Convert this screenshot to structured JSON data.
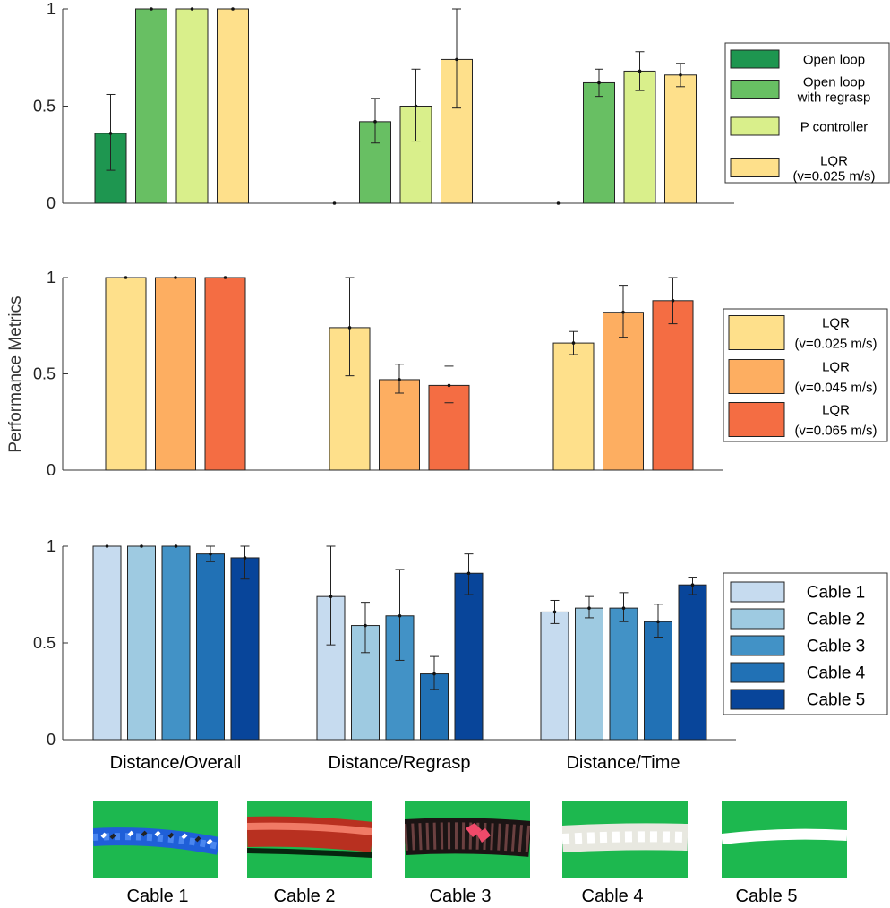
{
  "figure": {
    "y_axis_label": "Performance Metrics",
    "category_labels": [
      "Distance/Overall",
      "Distance/Regrasp",
      "Distance/Time"
    ]
  },
  "colors": {
    "open_loop": "#1e9650",
    "open_loop_regrasp": "#68bf63",
    "p_controller": "#d9ef8b",
    "lqr_025": "#fee08b",
    "lqr_045": "#fdae61",
    "lqr_065": "#f46d43",
    "cable1": "#c6dbef",
    "cable2": "#9ecae1",
    "cable3": "#4292c6",
    "cable4": "#2171b5",
    "cable5": "#08459a",
    "photo_background": "#1db84f"
  },
  "chart_data": [
    {
      "type": "bar",
      "categories": [
        "Distance/Overall",
        "Distance/Regrasp",
        "Distance/Time"
      ],
      "ylim": [
        0,
        1
      ],
      "yticks": [
        "0",
        "0.5",
        "1"
      ],
      "series": [
        {
          "name": "Open loop",
          "legend_lines": [
            "Open loop"
          ],
          "color_key": "open_loop",
          "values": [
            0.36,
            0,
            0
          ],
          "err_low": [
            0.17,
            0,
            0
          ],
          "err_high": [
            0.56,
            0,
            0
          ]
        },
        {
          "name": "Open loop with regrasp",
          "legend_lines": [
            "Open loop",
            "with regrasp"
          ],
          "color_key": "open_loop_regrasp",
          "values": [
            1,
            0.42,
            0.62
          ],
          "err_low": [
            1,
            0.31,
            0.55
          ],
          "err_high": [
            1,
            0.54,
            0.69
          ]
        },
        {
          "name": "P controller",
          "legend_lines": [
            "P controller"
          ],
          "color_key": "p_controller",
          "values": [
            1,
            0.5,
            0.68
          ],
          "err_low": [
            1,
            0.32,
            0.58
          ],
          "err_high": [
            1,
            0.69,
            0.78
          ]
        },
        {
          "name": "LQR (v=0.025 m/s)",
          "legend_lines": [
            "LQR",
            "(v=0.025 m/s)"
          ],
          "color_key": "lqr_025",
          "values": [
            1,
            0.74,
            0.66
          ],
          "err_low": [
            1,
            0.49,
            0.6
          ],
          "err_high": [
            1,
            1.0,
            0.72
          ]
        }
      ]
    },
    {
      "type": "bar",
      "categories": [
        "Distance/Overall",
        "Distance/Regrasp",
        "Distance/Time"
      ],
      "ylim": [
        0,
        1
      ],
      "yticks": [
        "0",
        "0.5",
        "1"
      ],
      "series": [
        {
          "name": "LQR (v=0.025 m/s)",
          "legend_lines": [
            "LQR",
            "(v=0.025 m/s)"
          ],
          "color_key": "lqr_025",
          "values": [
            1,
            0.74,
            0.66
          ],
          "err_low": [
            1,
            0.49,
            0.6
          ],
          "err_high": [
            1,
            1.0,
            0.72
          ]
        },
        {
          "name": "LQR (v=0.045 m/s)",
          "legend_lines": [
            "LQR",
            "(v=0.045 m/s)"
          ],
          "color_key": "lqr_045",
          "values": [
            1,
            0.47,
            0.82
          ],
          "err_low": [
            1,
            0.4,
            0.69
          ],
          "err_high": [
            1,
            0.55,
            0.96
          ]
        },
        {
          "name": "LQR (v=0.065 m/s)",
          "legend_lines": [
            "LQR",
            "(v=0.065 m/s)"
          ],
          "color_key": "lqr_065",
          "values": [
            1,
            0.44,
            0.88
          ],
          "err_low": [
            1,
            0.35,
            0.76
          ],
          "err_high": [
            1,
            0.54,
            1.0
          ]
        }
      ]
    },
    {
      "type": "bar",
      "categories": [
        "Distance/Overall",
        "Distance/Regrasp",
        "Distance/Time"
      ],
      "ylim": [
        0,
        1
      ],
      "yticks": [
        "0",
        "0.5",
        "1"
      ],
      "series": [
        {
          "name": "Cable 1",
          "legend_lines": [
            "Cable 1"
          ],
          "color_key": "cable1",
          "values": [
            1,
            0.74,
            0.66
          ],
          "err_low": [
            1,
            0.49,
            0.6
          ],
          "err_high": [
            1,
            1.0,
            0.72
          ]
        },
        {
          "name": "Cable 2",
          "legend_lines": [
            "Cable 2"
          ],
          "color_key": "cable2",
          "values": [
            1,
            0.59,
            0.68
          ],
          "err_low": [
            1,
            0.45,
            0.63
          ],
          "err_high": [
            1,
            0.71,
            0.74
          ]
        },
        {
          "name": "Cable 3",
          "legend_lines": [
            "Cable 3"
          ],
          "color_key": "cable3",
          "values": [
            1,
            0.64,
            0.68
          ],
          "err_low": [
            1,
            0.41,
            0.61
          ],
          "err_high": [
            1,
            0.88,
            0.76
          ]
        },
        {
          "name": "Cable 4",
          "legend_lines": [
            "Cable 4"
          ],
          "color_key": "cable4",
          "values": [
            0.96,
            0.34,
            0.61
          ],
          "err_low": [
            0.92,
            0.26,
            0.53
          ],
          "err_high": [
            1,
            0.43,
            0.7
          ]
        },
        {
          "name": "Cable 5",
          "legend_lines": [
            "Cable 5"
          ],
          "color_key": "cable5",
          "values": [
            0.94,
            0.86,
            0.8
          ],
          "err_low": [
            0.83,
            0.75,
            0.75
          ],
          "err_high": [
            1,
            0.96,
            0.84
          ]
        }
      ]
    }
  ],
  "cable_photos": [
    "Cable 1",
    "Cable 2",
    "Cable 3",
    "Cable 4",
    "Cable 5"
  ]
}
